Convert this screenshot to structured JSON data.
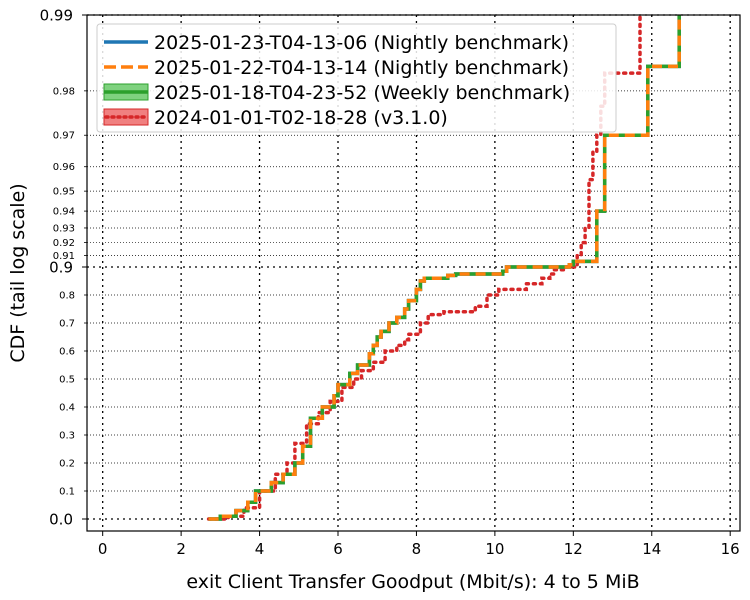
{
  "chart_data": {
    "type": "line",
    "xlabel": "exit Client Transfer Goodput (Mbit/s): 4 to 5 MiB",
    "ylabel": "CDF (tail log scale)",
    "xlim": [
      -0.4,
      16.25
    ],
    "x_ticks": [
      "0",
      "2",
      "4",
      "6",
      "8",
      "10",
      "12",
      "14",
      "16"
    ],
    "y_major_ticks": [
      {
        "label": "0.0",
        "value": 0.0
      },
      {
        "label": "0.9",
        "value": 0.9
      },
      {
        "label": "0.99",
        "value": 0.99
      }
    ],
    "y_minor_ticks": [
      {
        "label": "0.1",
        "value": 0.1
      },
      {
        "label": "0.2",
        "value": 0.2
      },
      {
        "label": "0.3",
        "value": 0.3
      },
      {
        "label": "0.4",
        "value": 0.4
      },
      {
        "label": "0.5",
        "value": 0.5
      },
      {
        "label": "0.6",
        "value": 0.6
      },
      {
        "label": "0.7",
        "value": 0.7
      },
      {
        "label": "0.8",
        "value": 0.8
      },
      {
        "label": "0.91",
        "value": 0.91
      },
      {
        "label": "0.92",
        "value": 0.92
      },
      {
        "label": "0.93",
        "value": 0.93
      },
      {
        "label": "0.94",
        "value": 0.94
      },
      {
        "label": "0.95",
        "value": 0.95
      },
      {
        "label": "0.96",
        "value": 0.96
      },
      {
        "label": "0.97",
        "value": 0.97
      },
      {
        "label": "0.98",
        "value": 0.98
      }
    ],
    "grid": true,
    "legend_position": "top-left",
    "series": [
      {
        "name": "2025-01-23-T04-13-06 (Nightly benchmark)",
        "color": "#1f77b4",
        "style": "solid",
        "points": [
          [
            2.7,
            0.0
          ],
          [
            3.0,
            0.01
          ],
          [
            3.4,
            0.03
          ],
          [
            3.7,
            0.06
          ],
          [
            3.9,
            0.1
          ],
          [
            4.3,
            0.13
          ],
          [
            4.6,
            0.16
          ],
          [
            4.9,
            0.2
          ],
          [
            5.1,
            0.26
          ],
          [
            5.3,
            0.36
          ],
          [
            5.6,
            0.4
          ],
          [
            5.9,
            0.44
          ],
          [
            6.0,
            0.48
          ],
          [
            6.3,
            0.52
          ],
          [
            6.5,
            0.55
          ],
          [
            6.8,
            0.59
          ],
          [
            6.9,
            0.62
          ],
          [
            7.0,
            0.65
          ],
          [
            7.1,
            0.67
          ],
          [
            7.3,
            0.7
          ],
          [
            7.5,
            0.72
          ],
          [
            7.7,
            0.75
          ],
          [
            7.8,
            0.78
          ],
          [
            8.0,
            0.82
          ],
          [
            8.1,
            0.85
          ],
          [
            8.2,
            0.86
          ],
          [
            8.8,
            0.87
          ],
          [
            9.0,
            0.875
          ],
          [
            10.2,
            0.885
          ],
          [
            10.3,
            0.9
          ],
          [
            11.9,
            0.902
          ],
          [
            12.0,
            0.905
          ],
          [
            12.6,
            0.91
          ],
          [
            12.6,
            0.94
          ],
          [
            12.8,
            0.95
          ],
          [
            12.8,
            0.97
          ],
          [
            13.9,
            0.984
          ],
          [
            13.9,
            0.984
          ],
          [
            14.7,
            0.99
          ]
        ]
      },
      {
        "name": "2025-01-22-T04-13-14 (Nightly benchmark)",
        "color": "#ff7f0e",
        "style": "dashed",
        "points": [
          [
            2.7,
            0.0
          ],
          [
            3.0,
            0.01
          ],
          [
            3.4,
            0.03
          ],
          [
            3.7,
            0.06
          ],
          [
            3.9,
            0.1
          ],
          [
            4.3,
            0.13
          ],
          [
            4.6,
            0.16
          ],
          [
            4.9,
            0.2
          ],
          [
            5.1,
            0.26
          ],
          [
            5.3,
            0.36
          ],
          [
            5.6,
            0.4
          ],
          [
            5.9,
            0.44
          ],
          [
            6.0,
            0.48
          ],
          [
            6.3,
            0.52
          ],
          [
            6.5,
            0.55
          ],
          [
            6.8,
            0.59
          ],
          [
            6.9,
            0.62
          ],
          [
            7.0,
            0.65
          ],
          [
            7.1,
            0.67
          ],
          [
            7.3,
            0.7
          ],
          [
            7.5,
            0.72
          ],
          [
            7.7,
            0.75
          ],
          [
            7.8,
            0.78
          ],
          [
            8.0,
            0.82
          ],
          [
            8.1,
            0.85
          ],
          [
            8.2,
            0.86
          ],
          [
            8.8,
            0.87
          ],
          [
            9.0,
            0.875
          ],
          [
            10.2,
            0.885
          ],
          [
            10.3,
            0.9
          ],
          [
            11.9,
            0.902
          ],
          [
            12.0,
            0.905
          ],
          [
            12.6,
            0.91
          ],
          [
            12.6,
            0.94
          ],
          [
            12.8,
            0.95
          ],
          [
            12.8,
            0.97
          ],
          [
            13.9,
            0.984
          ],
          [
            13.9,
            0.984
          ],
          [
            14.7,
            0.99
          ]
        ]
      },
      {
        "name": "2025-01-18-T04-23-52 (Weekly benchmark)",
        "color": "#2ca02c",
        "style": "solid",
        "points": [
          [
            2.7,
            0.0
          ],
          [
            3.0,
            0.01
          ],
          [
            3.4,
            0.03
          ],
          [
            3.7,
            0.06
          ],
          [
            3.9,
            0.1
          ],
          [
            4.3,
            0.13
          ],
          [
            4.6,
            0.16
          ],
          [
            4.9,
            0.2
          ],
          [
            5.1,
            0.26
          ],
          [
            5.3,
            0.36
          ],
          [
            5.6,
            0.4
          ],
          [
            5.9,
            0.44
          ],
          [
            6.0,
            0.48
          ],
          [
            6.3,
            0.52
          ],
          [
            6.5,
            0.55
          ],
          [
            6.8,
            0.59
          ],
          [
            6.9,
            0.62
          ],
          [
            7.0,
            0.65
          ],
          [
            7.1,
            0.67
          ],
          [
            7.3,
            0.7
          ],
          [
            7.5,
            0.72
          ],
          [
            7.7,
            0.75
          ],
          [
            7.8,
            0.78
          ],
          [
            8.0,
            0.82
          ],
          [
            8.1,
            0.85
          ],
          [
            8.2,
            0.86
          ],
          [
            8.8,
            0.87
          ],
          [
            9.0,
            0.875
          ],
          [
            10.2,
            0.885
          ],
          [
            10.3,
            0.9
          ],
          [
            11.9,
            0.902
          ],
          [
            12.0,
            0.905
          ],
          [
            12.6,
            0.91
          ],
          [
            12.6,
            0.94
          ],
          [
            12.8,
            0.95
          ],
          [
            12.8,
            0.97
          ],
          [
            13.9,
            0.984
          ],
          [
            13.9,
            0.984
          ],
          [
            14.7,
            0.99
          ]
        ]
      },
      {
        "name": "2024-01-01-T02-18-28 (v3.1.0)",
        "color": "#d62728",
        "style": "dotted",
        "points": [
          [
            2.7,
            0.0
          ],
          [
            3.2,
            0.01
          ],
          [
            3.6,
            0.04
          ],
          [
            4.0,
            0.1
          ],
          [
            4.4,
            0.16
          ],
          [
            4.7,
            0.2
          ],
          [
            4.9,
            0.27
          ],
          [
            5.2,
            0.34
          ],
          [
            5.5,
            0.38
          ],
          [
            5.8,
            0.42
          ],
          [
            6.1,
            0.47
          ],
          [
            6.4,
            0.5
          ],
          [
            6.6,
            0.53
          ],
          [
            6.9,
            0.56
          ],
          [
            7.2,
            0.6
          ],
          [
            7.5,
            0.62
          ],
          [
            7.7,
            0.64
          ],
          [
            7.8,
            0.66
          ],
          [
            8.1,
            0.7
          ],
          [
            8.3,
            0.73
          ],
          [
            8.7,
            0.74
          ],
          [
            9.5,
            0.76
          ],
          [
            9.8,
            0.8
          ],
          [
            10.1,
            0.82
          ],
          [
            10.8,
            0.84
          ],
          [
            11.2,
            0.86
          ],
          [
            11.4,
            0.875
          ],
          [
            11.5,
            0.89
          ],
          [
            11.8,
            0.9
          ],
          [
            12.1,
            0.91
          ],
          [
            12.2,
            0.92
          ],
          [
            12.3,
            0.93
          ],
          [
            12.4,
            0.955
          ],
          [
            12.5,
            0.965
          ],
          [
            12.6,
            0.97
          ],
          [
            12.7,
            0.977
          ],
          [
            12.8,
            0.983
          ],
          [
            13.7,
            0.99
          ]
        ]
      }
    ]
  }
}
